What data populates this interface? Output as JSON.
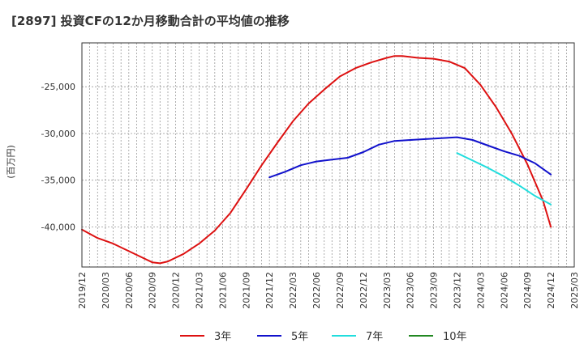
{
  "chart_data": {
    "type": "line",
    "title": "[2897]  投資CFの12か月移動合計の平均値の推移",
    "ylabel": "(百万円)",
    "xlabel": "",
    "x_ticks": [
      "2019/12",
      "2020/03",
      "2020/06",
      "2020/09",
      "2020/12",
      "2021/03",
      "2021/06",
      "2021/09",
      "2021/12",
      "2022/03",
      "2022/06",
      "2022/09",
      "2022/12",
      "2023/03",
      "2023/06",
      "2023/09",
      "2023/12",
      "2024/03",
      "2024/06",
      "2024/09",
      "2024/12",
      "2025/03"
    ],
    "y_ticks": [
      -25000,
      -30000,
      -35000,
      -40000
    ],
    "y_tick_labels": [
      "-25,000",
      "-30,000",
      "-35,000",
      "-40,000"
    ],
    "ylim": [
      -44300,
      -20300
    ],
    "xlim": [
      "2019/12",
      "2025/03"
    ],
    "grid": true,
    "legend_position": "bottom",
    "series": [
      {
        "name": "3年",
        "color": "#dd1111",
        "points": [
          [
            "2019/12",
            -40300
          ],
          [
            "2020/02",
            -41200
          ],
          [
            "2020/04",
            -41800
          ],
          [
            "2020/06",
            -42600
          ],
          [
            "2020/08",
            -43400
          ],
          [
            "2020/09",
            -43800
          ],
          [
            "2020/10",
            -43900
          ],
          [
            "2020/11",
            -43700
          ],
          [
            "2021/01",
            -42900
          ],
          [
            "2021/03",
            -41800
          ],
          [
            "2021/05",
            -40400
          ],
          [
            "2021/07",
            -38500
          ],
          [
            "2021/09",
            -36000
          ],
          [
            "2021/11",
            -33400
          ],
          [
            "2022/01",
            -31000
          ],
          [
            "2022/03",
            -28700
          ],
          [
            "2022/05",
            -26800
          ],
          [
            "2022/07",
            -25300
          ],
          [
            "2022/09",
            -23900
          ],
          [
            "2022/11",
            -23000
          ],
          [
            "2023/01",
            -22400
          ],
          [
            "2023/03",
            -21900
          ],
          [
            "2023/04",
            -21700
          ],
          [
            "2023/05",
            -21700
          ],
          [
            "2023/07",
            -21900
          ],
          [
            "2023/09",
            -22000
          ],
          [
            "2023/11",
            -22300
          ],
          [
            "2024/01",
            -23000
          ],
          [
            "2024/03",
            -24800
          ],
          [
            "2024/05",
            -27200
          ],
          [
            "2024/07",
            -30000
          ],
          [
            "2024/09",
            -33300
          ],
          [
            "2024/11",
            -37200
          ],
          [
            "2024/12",
            -40000
          ]
        ]
      },
      {
        "name": "5年",
        "color": "#1111cc",
        "points": [
          [
            "2021/12",
            -34700
          ],
          [
            "2022/02",
            -34100
          ],
          [
            "2022/04",
            -33400
          ],
          [
            "2022/06",
            -33000
          ],
          [
            "2022/08",
            -32800
          ],
          [
            "2022/10",
            -32600
          ],
          [
            "2022/12",
            -32000
          ],
          [
            "2023/02",
            -31200
          ],
          [
            "2023/04",
            -30800
          ],
          [
            "2023/06",
            -30700
          ],
          [
            "2023/08",
            -30600
          ],
          [
            "2023/10",
            -30500
          ],
          [
            "2023/12",
            -30400
          ],
          [
            "2024/02",
            -30700
          ],
          [
            "2024/04",
            -31300
          ],
          [
            "2024/06",
            -31900
          ],
          [
            "2024/08",
            -32400
          ],
          [
            "2024/10",
            -33200
          ],
          [
            "2024/12",
            -34400
          ]
        ]
      },
      {
        "name": "7年",
        "color": "#22dddd",
        "points": [
          [
            "2023/12",
            -32100
          ],
          [
            "2024/02",
            -32900
          ],
          [
            "2024/04",
            -33700
          ],
          [
            "2024/06",
            -34600
          ],
          [
            "2024/08",
            -35600
          ],
          [
            "2024/10",
            -36700
          ],
          [
            "2024/12",
            -37600
          ]
        ]
      },
      {
        "name": "10年",
        "color": "#228822",
        "points": []
      }
    ]
  }
}
